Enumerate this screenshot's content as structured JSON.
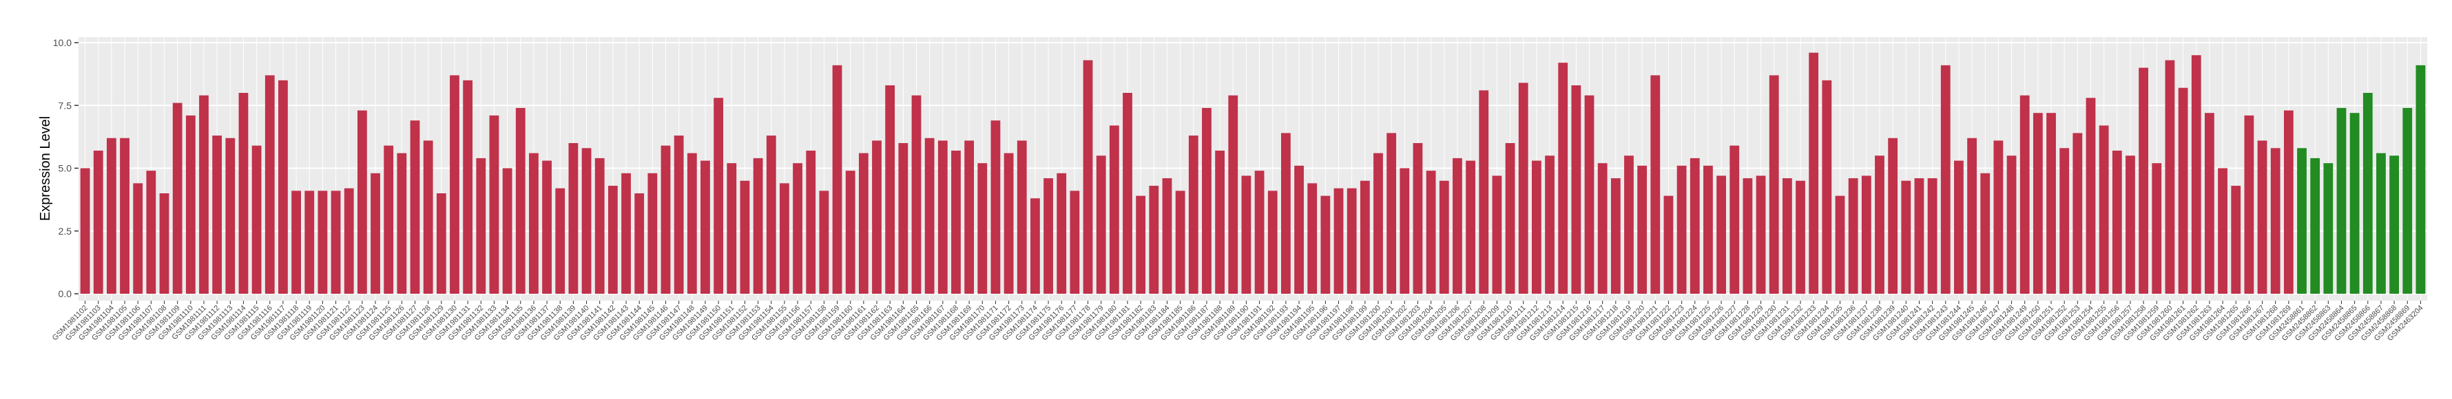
{
  "chart_data": {
    "type": "bar",
    "y_label": "Expression Level",
    "categories": [
      "GSM1981102",
      "GSM1981103",
      "GSM1981104",
      "GSM1981105",
      "GSM1981106",
      "GSM1981107",
      "GSM1981108",
      "GSM1981109",
      "GSM1981110",
      "GSM1981111",
      "GSM1981112",
      "GSM1981113",
      "GSM1981114",
      "GSM1981115",
      "GSM1981116",
      "GSM1981117",
      "GSM1981118",
      "GSM1981119",
      "GSM1981120",
      "GSM1981121",
      "GSM1981122",
      "GSM1981123",
      "GSM1981124",
      "GSM1981125",
      "GSM1981126",
      "GSM1981127",
      "GSM1981128",
      "GSM1981129",
      "GSM1981130",
      "GSM1981131",
      "GSM1981132",
      "GSM1981133",
      "GSM1981134",
      "GSM1981135",
      "GSM1981136",
      "GSM1981137",
      "GSM1981138",
      "GSM1981139",
      "GSM1981140",
      "GSM1981141",
      "GSM1981142",
      "GSM1981143",
      "GSM1981144",
      "GSM1981145",
      "GSM1981146",
      "GSM1981147",
      "GSM1981148",
      "GSM1981149",
      "GSM1981150",
      "GSM1981151",
      "GSM1981152",
      "GSM1981153",
      "GSM1981154",
      "GSM1981155",
      "GSM1981156",
      "GSM1981157",
      "GSM1981158",
      "GSM1981159",
      "GSM1981160",
      "GSM1981161",
      "GSM1981162",
      "GSM1981163",
      "GSM1981164",
      "GSM1981165",
      "GSM1981166",
      "GSM1981167",
      "GSM1981168",
      "GSM1981169",
      "GSM1981170",
      "GSM1981171",
      "GSM1981172",
      "GSM1981173",
      "GSM1981174",
      "GSM1981175",
      "GSM1981176",
      "GSM1981177",
      "GSM1981178",
      "GSM1981179",
      "GSM1981180",
      "GSM1981181",
      "GSM1981182",
      "GSM1981183",
      "GSM1981184",
      "GSM1981185",
      "GSM1981186",
      "GSM1981187",
      "GSM1981188",
      "GSM1981189",
      "GSM1981190",
      "GSM1981191",
      "GSM1981192",
      "GSM1981193",
      "GSM1981194",
      "GSM1981195",
      "GSM1981196",
      "GSM1981197",
      "GSM1981198",
      "GSM1981199",
      "GSM1981200",
      "GSM1981201",
      "GSM1981202",
      "GSM1981203",
      "GSM1981204",
      "GSM1981205",
      "GSM1981206",
      "GSM1981207",
      "GSM1981208",
      "GSM1981209",
      "GSM1981210",
      "GSM1981211",
      "GSM1981212",
      "GSM1981213",
      "GSM1981214",
      "GSM1981215",
      "GSM1981216",
      "GSM1981217",
      "GSM1981218",
      "GSM1981219",
      "GSM1981220",
      "GSM1981221",
      "GSM1981222",
      "GSM1981223",
      "GSM1981224",
      "GSM1981225",
      "GSM1981226",
      "GSM1981227",
      "GSM1981228",
      "GSM1981229",
      "GSM1981230",
      "GSM1981231",
      "GSM1981232",
      "GSM1981233",
      "GSM1981234",
      "GSM1981235",
      "GSM1981236",
      "GSM1981237",
      "GSM1981238",
      "GSM1981239",
      "GSM1981240",
      "GSM1981241",
      "GSM1981242",
      "GSM1981243",
      "GSM1981244",
      "GSM1981245",
      "GSM1981246",
      "GSM1981247",
      "GSM1981248",
      "GSM1981249",
      "GSM1981250",
      "GSM1981251",
      "GSM1981252",
      "GSM1981253",
      "GSM1981254",
      "GSM1981255",
      "GSM1981256",
      "GSM1981257",
      "GSM1981258",
      "GSM1981259",
      "GSM1981260",
      "GSM1981261",
      "GSM1981262",
      "GSM1981263",
      "GSM1981264",
      "GSM1981265",
      "GSM1981266",
      "GSM1981267",
      "GSM1981268",
      "GSM1981269",
      "GSM2458861",
      "GSM2458862",
      "GSM2458863",
      "GSM2458864",
      "GSM2458865",
      "GSM2458866",
      "GSM2458867",
      "GSM2458868",
      "GSM2458869",
      "GSM2463204"
    ],
    "values": [
      5.0,
      5.7,
      6.2,
      6.2,
      4.4,
      4.9,
      4.0,
      7.6,
      7.1,
      7.9,
      6.3,
      6.2,
      8.0,
      5.9,
      8.7,
      8.5,
      4.1,
      4.1,
      4.1,
      4.1,
      4.2,
      7.3,
      4.8,
      5.9,
      5.6,
      6.9,
      6.1,
      4.0,
      8.7,
      8.5,
      5.4,
      7.1,
      5.0,
      7.4,
      5.6,
      5.3,
      4.2,
      6.0,
      5.8,
      5.4,
      4.3,
      4.8,
      4.0,
      4.8,
      5.9,
      6.3,
      5.6,
      5.3,
      7.8,
      5.2,
      4.5,
      5.4,
      6.3,
      4.4,
      5.2,
      5.7,
      4.1,
      9.1,
      4.9,
      5.6,
      6.1,
      8.3,
      6.0,
      7.9,
      6.2,
      6.1,
      5.7,
      6.1,
      5.2,
      6.9,
      5.6,
      6.1,
      3.8,
      4.6,
      4.8,
      4.1,
      9.3,
      5.5,
      6.7,
      8.0,
      3.9,
      4.3,
      4.6,
      4.1,
      6.3,
      7.4,
      5.7,
      7.9,
      4.7,
      4.9,
      4.1,
      6.4,
      5.1,
      4.4,
      3.9,
      4.2,
      4.2,
      4.5,
      5.6,
      6.4,
      5.0,
      6.0,
      4.9,
      4.5,
      5.4,
      5.3,
      8.1,
      4.7,
      6.0,
      8.4,
      5.3,
      5.5,
      9.2,
      8.3,
      7.9,
      5.2,
      4.6,
      5.5,
      5.1,
      8.7,
      3.9,
      5.1,
      5.4,
      5.1,
      4.7,
      5.9,
      4.6,
      4.7,
      8.7,
      4.6,
      4.5,
      9.6,
      8.5,
      3.9,
      4.6,
      4.7,
      5.5,
      6.2,
      4.5,
      4.6,
      4.6,
      9.1,
      5.3,
      6.2,
      4.8,
      6.1,
      5.5,
      7.9,
      7.2,
      7.2,
      5.8,
      6.4,
      7.8,
      6.7,
      5.7,
      5.5,
      9.0,
      5.2,
      9.3,
      8.2,
      9.5,
      7.2,
      5.0,
      4.3,
      7.1,
      6.1,
      5.8,
      7.3,
      5.8,
      5.4,
      5.2,
      7.4,
      7.2,
      8.0,
      5.6,
      5.5,
      7.4,
      9.1
    ],
    "bar_colors": [
      "#c0314a",
      "#c0314a",
      "#c0314a",
      "#c0314a",
      "#c0314a",
      "#c0314a",
      "#c0314a",
      "#c0314a",
      "#c0314a",
      "#c0314a",
      "#c0314a",
      "#c0314a",
      "#c0314a",
      "#c0314a",
      "#c0314a",
      "#c0314a",
      "#c0314a",
      "#c0314a",
      "#c0314a",
      "#c0314a",
      "#c0314a",
      "#c0314a",
      "#c0314a",
      "#c0314a",
      "#c0314a",
      "#c0314a",
      "#c0314a",
      "#c0314a",
      "#c0314a",
      "#c0314a",
      "#c0314a",
      "#c0314a",
      "#c0314a",
      "#c0314a",
      "#c0314a",
      "#c0314a",
      "#c0314a",
      "#c0314a",
      "#c0314a",
      "#c0314a",
      "#c0314a",
      "#c0314a",
      "#c0314a",
      "#c0314a",
      "#c0314a",
      "#c0314a",
      "#c0314a",
      "#c0314a",
      "#c0314a",
      "#c0314a",
      "#c0314a",
      "#c0314a",
      "#c0314a",
      "#c0314a",
      "#c0314a",
      "#c0314a",
      "#c0314a",
      "#c0314a",
      "#c0314a",
      "#c0314a",
      "#c0314a",
      "#c0314a",
      "#c0314a",
      "#c0314a",
      "#c0314a",
      "#c0314a",
      "#c0314a",
      "#c0314a",
      "#c0314a",
      "#c0314a",
      "#c0314a",
      "#c0314a",
      "#c0314a",
      "#c0314a",
      "#c0314a",
      "#c0314a",
      "#c0314a",
      "#c0314a",
      "#c0314a",
      "#c0314a",
      "#c0314a",
      "#c0314a",
      "#c0314a",
      "#c0314a",
      "#c0314a",
      "#c0314a",
      "#c0314a",
      "#c0314a",
      "#c0314a",
      "#c0314a",
      "#c0314a",
      "#c0314a",
      "#c0314a",
      "#c0314a",
      "#c0314a",
      "#c0314a",
      "#c0314a",
      "#c0314a",
      "#c0314a",
      "#c0314a",
      "#c0314a",
      "#c0314a",
      "#c0314a",
      "#c0314a",
      "#c0314a",
      "#c0314a",
      "#c0314a",
      "#c0314a",
      "#c0314a",
      "#c0314a",
      "#c0314a",
      "#c0314a",
      "#c0314a",
      "#c0314a",
      "#c0314a",
      "#c0314a",
      "#c0314a",
      "#c0314a",
      "#c0314a",
      "#c0314a",
      "#c0314a",
      "#c0314a",
      "#c0314a",
      "#c0314a",
      "#c0314a",
      "#c0314a",
      "#c0314a",
      "#c0314a",
      "#c0314a",
      "#c0314a",
      "#c0314a",
      "#c0314a",
      "#c0314a",
      "#c0314a",
      "#c0314a",
      "#c0314a",
      "#c0314a",
      "#c0314a",
      "#c0314a",
      "#c0314a",
      "#c0314a",
      "#c0314a",
      "#c0314a",
      "#c0314a",
      "#c0314a",
      "#c0314a",
      "#c0314a",
      "#c0314a",
      "#c0314a",
      "#c0314a",
      "#c0314a",
      "#c0314a",
      "#c0314a",
      "#c0314a",
      "#c0314a",
      "#c0314a",
      "#c0314a",
      "#c0314a",
      "#c0314a",
      "#c0314a",
      "#c0314a",
      "#c0314a",
      "#c0314a",
      "#c0314a",
      "#c0314a",
      "#c0314a",
      "#c0314a",
      "#c0314a",
      "#228b22",
      "#228b22",
      "#228b22",
      "#228b22",
      "#228b22",
      "#228b22",
      "#228b22",
      "#228b22",
      "#228b22",
      "#228b22"
    ],
    "ylim": [
      0,
      10
    ],
    "yticks": [
      {
        "value": 0,
        "label": "0.0"
      },
      {
        "value": 2.5,
        "label": "2.5"
      },
      {
        "value": 5,
        "label": "5.0"
      },
      {
        "value": 7.5,
        "label": "7.5"
      },
      {
        "value": 10,
        "label": "10.0"
      }
    ],
    "grid": true
  }
}
